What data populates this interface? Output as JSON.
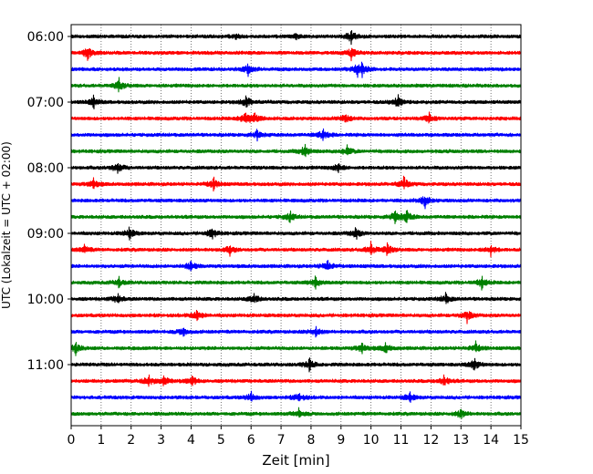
{
  "chart_data": {
    "type": "line",
    "title": "",
    "xlabel": "Zeit  [min]",
    "ylabel": "UTC (Lokalzeit = UTC + 02:00)",
    "xlim": [
      0,
      15
    ],
    "x_ticks": [
      "0",
      "1",
      "2",
      "3",
      "4",
      "5",
      "6",
      "7",
      "8",
      "9",
      "10",
      "11",
      "12",
      "13",
      "14",
      "15"
    ],
    "y_tick_labels": [
      "06:00",
      "07:00",
      "08:00",
      "09:00",
      "10:00",
      "11:00"
    ],
    "grid": "vertical dotted",
    "trace_minutes_per_line": 15,
    "color_cycle": [
      "#000000",
      "#ff0000",
      "#0000ff",
      "#008000"
    ],
    "series": [
      {
        "start": "06:00",
        "color": "#000000",
        "events": [
          {
            "t": 5.5,
            "a": 0.25
          },
          {
            "t": 7.5,
            "a": 0.25
          },
          {
            "t": 9.35,
            "a": 0.7
          }
        ]
      },
      {
        "start": "06:15",
        "color": "#ff0000",
        "events": [
          {
            "t": 0.55,
            "a": 0.7
          },
          {
            "t": 9.35,
            "a": 0.6
          }
        ]
      },
      {
        "start": "06:30",
        "color": "#0000ff",
        "events": [
          {
            "t": 5.9,
            "a": 0.5
          },
          {
            "t": 9.55,
            "a": 0.5
          },
          {
            "t": 9.7,
            "a": 0.55
          }
        ]
      },
      {
        "start": "06:45",
        "color": "#008000",
        "events": [
          {
            "t": 1.6,
            "a": 0.55
          }
        ]
      },
      {
        "start": "07:00",
        "color": "#000000",
        "events": [
          {
            "t": 0.75,
            "a": 0.5
          },
          {
            "t": 5.85,
            "a": 0.6
          },
          {
            "t": 10.9,
            "a": 0.6
          }
        ]
      },
      {
        "start": "07:15",
        "color": "#ff0000",
        "events": [
          {
            "t": 5.8,
            "a": 0.6
          },
          {
            "t": 6.1,
            "a": 0.6
          },
          {
            "t": 9.15,
            "a": 0.5
          },
          {
            "t": 11.95,
            "a": 0.5
          }
        ]
      },
      {
        "start": "07:30",
        "color": "#0000ff",
        "events": [
          {
            "t": 6.2,
            "a": 0.45
          },
          {
            "t": 8.4,
            "a": 0.6
          }
        ]
      },
      {
        "start": "07:45",
        "color": "#008000",
        "events": [
          {
            "t": 7.8,
            "a": 0.6
          },
          {
            "t": 9.2,
            "a": 0.5
          }
        ]
      },
      {
        "start": "08:00",
        "color": "#000000",
        "events": [
          {
            "t": 1.55,
            "a": 0.6
          },
          {
            "t": 8.9,
            "a": 0.45
          }
        ]
      },
      {
        "start": "08:15",
        "color": "#ff0000",
        "events": [
          {
            "t": 0.75,
            "a": 0.5
          },
          {
            "t": 4.75,
            "a": 0.55
          },
          {
            "t": 11.1,
            "a": 0.6
          }
        ]
      },
      {
        "start": "08:30",
        "color": "#0000ff",
        "events": [
          {
            "t": 11.8,
            "a": 0.6
          }
        ]
      },
      {
        "start": "08:45",
        "color": "#008000",
        "events": [
          {
            "t": 7.3,
            "a": 0.5
          },
          {
            "t": 10.8,
            "a": 0.6
          },
          {
            "t": 11.2,
            "a": 0.6
          }
        ]
      },
      {
        "start": "09:00",
        "color": "#000000",
        "events": [
          {
            "t": 1.95,
            "a": 0.55
          },
          {
            "t": 4.7,
            "a": 0.55
          },
          {
            "t": 9.5,
            "a": 0.55
          }
        ]
      },
      {
        "start": "09:15",
        "color": "#ff0000",
        "events": [
          {
            "t": 0.45,
            "a": 0.45
          },
          {
            "t": 5.3,
            "a": 0.45
          },
          {
            "t": 10.0,
            "a": 0.6
          },
          {
            "t": 10.55,
            "a": 0.55
          },
          {
            "t": 14.0,
            "a": 0.5
          }
        ]
      },
      {
        "start": "09:30",
        "color": "#0000ff",
        "events": [
          {
            "t": 4.0,
            "a": 0.5
          },
          {
            "t": 8.55,
            "a": 0.55
          }
        ]
      },
      {
        "start": "09:45",
        "color": "#008000",
        "events": [
          {
            "t": 1.6,
            "a": 0.45
          },
          {
            "t": 8.15,
            "a": 0.5
          },
          {
            "t": 13.7,
            "a": 0.55
          }
        ]
      },
      {
        "start": "10:00",
        "color": "#000000",
        "events": [
          {
            "t": 1.55,
            "a": 0.45
          },
          {
            "t": 6.1,
            "a": 0.5
          },
          {
            "t": 12.5,
            "a": 0.5
          }
        ]
      },
      {
        "start": "10:15",
        "color": "#ff0000",
        "events": [
          {
            "t": 4.2,
            "a": 0.6
          },
          {
            "t": 13.2,
            "a": 0.6
          }
        ]
      },
      {
        "start": "10:30",
        "color": "#0000ff",
        "events": [
          {
            "t": 3.75,
            "a": 0.45
          },
          {
            "t": 8.15,
            "a": 0.5
          }
        ]
      },
      {
        "start": "10:45",
        "color": "#008000",
        "events": [
          {
            "t": 0.15,
            "a": 0.5
          },
          {
            "t": 9.7,
            "a": 0.5
          },
          {
            "t": 10.5,
            "a": 0.5
          },
          {
            "t": 13.5,
            "a": 0.5
          }
        ]
      },
      {
        "start": "11:00",
        "color": "#000000",
        "events": [
          {
            "t": 7.95,
            "a": 0.6
          },
          {
            "t": 13.45,
            "a": 0.6
          }
        ]
      },
      {
        "start": "11:15",
        "color": "#ff0000",
        "events": [
          {
            "t": 2.6,
            "a": 0.55
          },
          {
            "t": 3.1,
            "a": 0.5
          },
          {
            "t": 4.05,
            "a": 0.5
          },
          {
            "t": 12.45,
            "a": 0.55
          }
        ]
      },
      {
        "start": "11:30",
        "color": "#0000ff",
        "events": [
          {
            "t": 6.0,
            "a": 0.45
          },
          {
            "t": 7.6,
            "a": 0.5
          },
          {
            "t": 11.3,
            "a": 0.45
          }
        ]
      },
      {
        "start": "11:45",
        "color": "#008000",
        "events": [
          {
            "t": 7.6,
            "a": 0.45
          },
          {
            "t": 13.0,
            "a": 0.5
          }
        ]
      }
    ]
  }
}
